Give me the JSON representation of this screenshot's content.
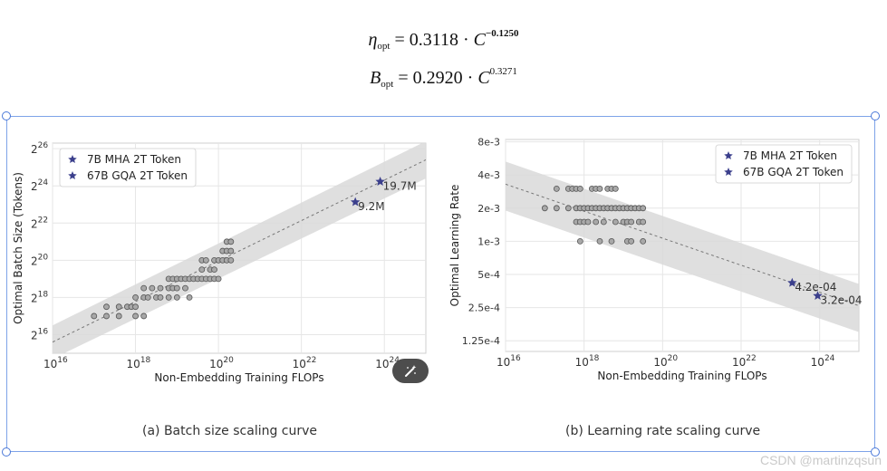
{
  "formulas": {
    "eta": {
      "symbol": "η",
      "sub": "opt",
      "coef": "= 0.3118 · ",
      "var": "C",
      "exp": "−0.1250"
    },
    "bopt": {
      "symbol": "B",
      "sub": "opt",
      "coef": "= 0.2920 · ",
      "var": "C",
      "exp": "0.3271"
    }
  },
  "captions": {
    "left": "(a) Batch size scaling curve",
    "right": "(b) Learning rate scaling curve"
  },
  "watermark": "CSDN @martinzqsun",
  "icons": {
    "magic": "magic-wand-icon",
    "star": "star-icon"
  },
  "colors": {
    "star": "#3b3f8c",
    "band": "#d9d9d9",
    "point": "#a8a8a8",
    "selection": "#7ea3e8"
  },
  "chart_data": [
    {
      "type": "scatter",
      "title": "",
      "xlabel": "Non-Embedding Training FLOPs",
      "ylabel": "Optimal Batch Size (Tokens)",
      "x_scale": "log10",
      "y_scale": "log2",
      "xlim_exp": [
        16,
        25
      ],
      "ylim_exp": [
        15,
        26.3
      ],
      "x_ticks": [
        {
          "base": "10",
          "exp": "16",
          "v": 16
        },
        {
          "base": "10",
          "exp": "18",
          "v": 18
        },
        {
          "base": "10",
          "exp": "20",
          "v": 20
        },
        {
          "base": "10",
          "exp": "22",
          "v": 22
        },
        {
          "base": "10",
          "exp": "24",
          "v": 24
        }
      ],
      "y_ticks": [
        {
          "base": "2",
          "exp": "16",
          "v": 16
        },
        {
          "base": "2",
          "exp": "18",
          "v": 18
        },
        {
          "base": "2",
          "exp": "20",
          "v": 20
        },
        {
          "base": "2",
          "exp": "22",
          "v": 22
        },
        {
          "base": "2",
          "exp": "24",
          "v": 24
        },
        {
          "base": "2",
          "exp": "26",
          "v": 26
        }
      ],
      "grid": true,
      "legend_position": "top-left",
      "fit_line": {
        "x_exp": [
          16,
          25
        ],
        "y_exp": [
          15.6,
          25.4
        ]
      },
      "band": {
        "upper": [
          16.5,
          26.4
        ],
        "lower": [
          14.7,
          24.4
        ]
      },
      "points": [
        [
          17.0,
          17.0
        ],
        [
          17.3,
          17.0
        ],
        [
          17.3,
          17.5
        ],
        [
          17.6,
          17.0
        ],
        [
          17.6,
          17.5
        ],
        [
          17.8,
          17.5
        ],
        [
          17.9,
          17.5
        ],
        [
          18.0,
          17.5
        ],
        [
          18.0,
          17.0
        ],
        [
          18.2,
          17.0
        ],
        [
          18.0,
          18.0
        ],
        [
          18.2,
          18.0
        ],
        [
          18.3,
          18.0
        ],
        [
          18.5,
          18.0
        ],
        [
          18.6,
          18.0
        ],
        [
          18.2,
          18.5
        ],
        [
          18.4,
          18.5
        ],
        [
          18.6,
          18.5
        ],
        [
          18.8,
          18.5
        ],
        [
          18.9,
          18.5
        ],
        [
          19.0,
          18.5
        ],
        [
          19.2,
          18.5
        ],
        [
          18.8,
          18.0
        ],
        [
          19.0,
          18.0
        ],
        [
          19.3,
          18.0
        ],
        [
          18.8,
          19.0
        ],
        [
          18.9,
          19.0
        ],
        [
          19.0,
          19.0
        ],
        [
          19.1,
          19.0
        ],
        [
          19.2,
          19.0
        ],
        [
          19.3,
          19.0
        ],
        [
          19.4,
          19.0
        ],
        [
          19.5,
          19.0
        ],
        [
          19.6,
          19.0
        ],
        [
          19.7,
          19.0
        ],
        [
          19.8,
          19.0
        ],
        [
          19.9,
          19.0
        ],
        [
          20.0,
          19.0
        ],
        [
          19.6,
          19.5
        ],
        [
          19.8,
          19.5
        ],
        [
          19.9,
          19.5
        ],
        [
          19.6,
          20.0
        ],
        [
          19.7,
          20.0
        ],
        [
          19.9,
          20.0
        ],
        [
          20.0,
          20.0
        ],
        [
          20.1,
          20.0
        ],
        [
          20.2,
          20.0
        ],
        [
          20.3,
          20.0
        ],
        [
          20.1,
          20.5
        ],
        [
          20.2,
          20.5
        ],
        [
          20.3,
          20.5
        ],
        [
          20.2,
          21.0
        ],
        [
          20.3,
          21.0
        ]
      ],
      "series": [
        {
          "name": "7B MHA 2T Token",
          "x_exp": 23.3,
          "y_exp": 23.13,
          "label": "9.2M"
        },
        {
          "name": "67B GQA 2T Token",
          "x_exp": 23.9,
          "y_exp": 24.23,
          "label": "19.7M"
        }
      ]
    },
    {
      "type": "scatter",
      "title": "",
      "xlabel": "Non-Embedding Training FLOPs",
      "ylabel": "Optimal Learning Rate",
      "x_scale": "log10",
      "y_scale": "log2",
      "xlim_exp": [
        16,
        25
      ],
      "ylim": [
        0.0001,
        0.0084
      ],
      "x_ticks": [
        {
          "base": "10",
          "exp": "16",
          "v": 16
        },
        {
          "base": "10",
          "exp": "18",
          "v": 18
        },
        {
          "base": "10",
          "exp": "20",
          "v": 20
        },
        {
          "base": "10",
          "exp": "22",
          "v": 22
        },
        {
          "base": "10",
          "exp": "24",
          "v": 24
        }
      ],
      "y_ticks": [
        {
          "label": "8e-3",
          "v": 0.008
        },
        {
          "label": "4e-3",
          "v": 0.004
        },
        {
          "label": "2e-3",
          "v": 0.002
        },
        {
          "label": "1e-3",
          "v": 0.001
        },
        {
          "label": "5e-4",
          "v": 0.0005
        },
        {
          "label": "2.5e-4",
          "v": 0.00025
        },
        {
          "label": "1.25e-4",
          "v": 0.000125
        }
      ],
      "grid": true,
      "legend_position": "top-right",
      "fit_line": {
        "x_exp": [
          16,
          25
        ],
        "y": [
          0.0033,
          0.00026
        ]
      },
      "band": {
        "upper": [
          0.0053,
          0.00041
        ],
        "lower": [
          0.0019,
          0.00015
        ]
      },
      "points": [
        [
          17.0,
          0.002
        ],
        [
          17.3,
          0.002
        ],
        [
          17.3,
          0.003
        ],
        [
          17.6,
          0.003
        ],
        [
          17.7,
          0.003
        ],
        [
          17.8,
          0.003
        ],
        [
          17.9,
          0.003
        ],
        [
          17.6,
          0.002
        ],
        [
          17.8,
          0.002
        ],
        [
          17.9,
          0.002
        ],
        [
          18.0,
          0.002
        ],
        [
          18.1,
          0.002
        ],
        [
          18.2,
          0.002
        ],
        [
          18.3,
          0.002
        ],
        [
          18.4,
          0.002
        ],
        [
          18.5,
          0.002
        ],
        [
          18.6,
          0.002
        ],
        [
          18.7,
          0.002
        ],
        [
          18.8,
          0.002
        ],
        [
          18.9,
          0.002
        ],
        [
          19.0,
          0.002
        ],
        [
          19.1,
          0.002
        ],
        [
          19.2,
          0.002
        ],
        [
          19.3,
          0.002
        ],
        [
          19.4,
          0.002
        ],
        [
          19.5,
          0.002
        ],
        [
          18.2,
          0.003
        ],
        [
          18.3,
          0.003
        ],
        [
          18.4,
          0.003
        ],
        [
          18.6,
          0.003
        ],
        [
          18.7,
          0.003
        ],
        [
          18.8,
          0.003
        ],
        [
          17.8,
          0.0015
        ],
        [
          17.9,
          0.0015
        ],
        [
          18.0,
          0.0015
        ],
        [
          18.1,
          0.0015
        ],
        [
          18.3,
          0.0015
        ],
        [
          18.5,
          0.0015
        ],
        [
          18.8,
          0.0015
        ],
        [
          19.0,
          0.0015
        ],
        [
          19.1,
          0.0015
        ],
        [
          19.2,
          0.0015
        ],
        [
          19.4,
          0.0015
        ],
        [
          19.5,
          0.0015
        ],
        [
          17.9,
          0.001
        ],
        [
          18.4,
          0.001
        ],
        [
          18.7,
          0.001
        ],
        [
          19.1,
          0.001
        ],
        [
          19.2,
          0.001
        ],
        [
          19.5,
          0.001
        ]
      ],
      "series": [
        {
          "name": "7B MHA 2T Token",
          "x_exp": 23.3,
          "y": 0.00042,
          "label": "4.2e-04"
        },
        {
          "name": "67B GQA 2T Token",
          "x_exp": 23.95,
          "y": 0.00032,
          "label": "3.2e-04"
        }
      ]
    }
  ]
}
